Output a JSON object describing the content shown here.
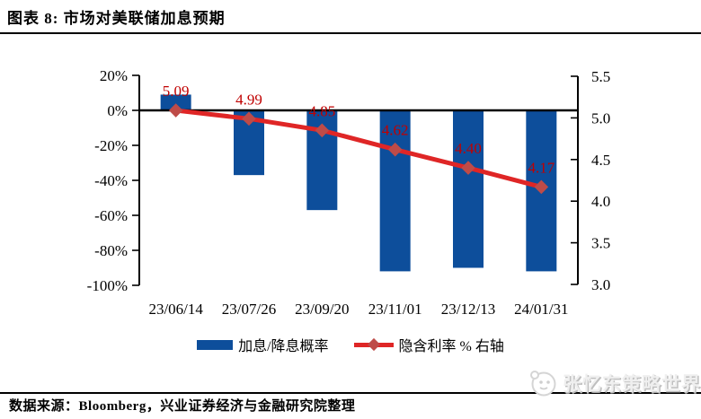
{
  "header": {
    "title": "图表 8: 市场对美联储加息预期"
  },
  "chart_data": {
    "type": "bar",
    "combo": "bar+line, dual axis",
    "title": "市场对美联储加息预期",
    "categories": [
      "23/06/14",
      "23/07/26",
      "23/09/20",
      "23/11/01",
      "23/12/13",
      "24/01/31"
    ],
    "series": [
      {
        "name": "加息/降息概率",
        "type": "bar",
        "axis": "left",
        "unit": "%",
        "color": "#0D4E9B",
        "values": [
          9,
          -37,
          -57,
          -92,
          -90,
          -92
        ]
      },
      {
        "name": "隐含利率 % 右轴",
        "type": "line",
        "axis": "right",
        "color": "#DF2626",
        "marker": "diamond",
        "marker_color": "#BE4B48",
        "label_color": "#C00000",
        "values": [
          5.09,
          4.99,
          4.85,
          4.62,
          4.4,
          4.17
        ],
        "labels": [
          "5.09",
          "4.99",
          "4.85",
          "4.62",
          "4.40",
          "4.17"
        ]
      }
    ],
    "left_axis": {
      "min": -100,
      "max": 20,
      "step": 20,
      "tick_labels": [
        "20%",
        "0%",
        "-20%",
        "-40%",
        "-60%",
        "-80%",
        "-100%"
      ]
    },
    "right_axis": {
      "min": 3.0,
      "max": 5.5,
      "step": 0.5,
      "tick_labels": [
        "5.5",
        "5.0",
        "4.5",
        "4.0",
        "3.5",
        "3.0"
      ]
    },
    "grid": false,
    "legend_position": "bottom",
    "zero_line": true
  },
  "footer": {
    "source_prefix": "数据来源：",
    "source_text": "Bloomberg，兴业证券经济与金融研究院整理",
    "watermark": "张忆东策略世界"
  }
}
